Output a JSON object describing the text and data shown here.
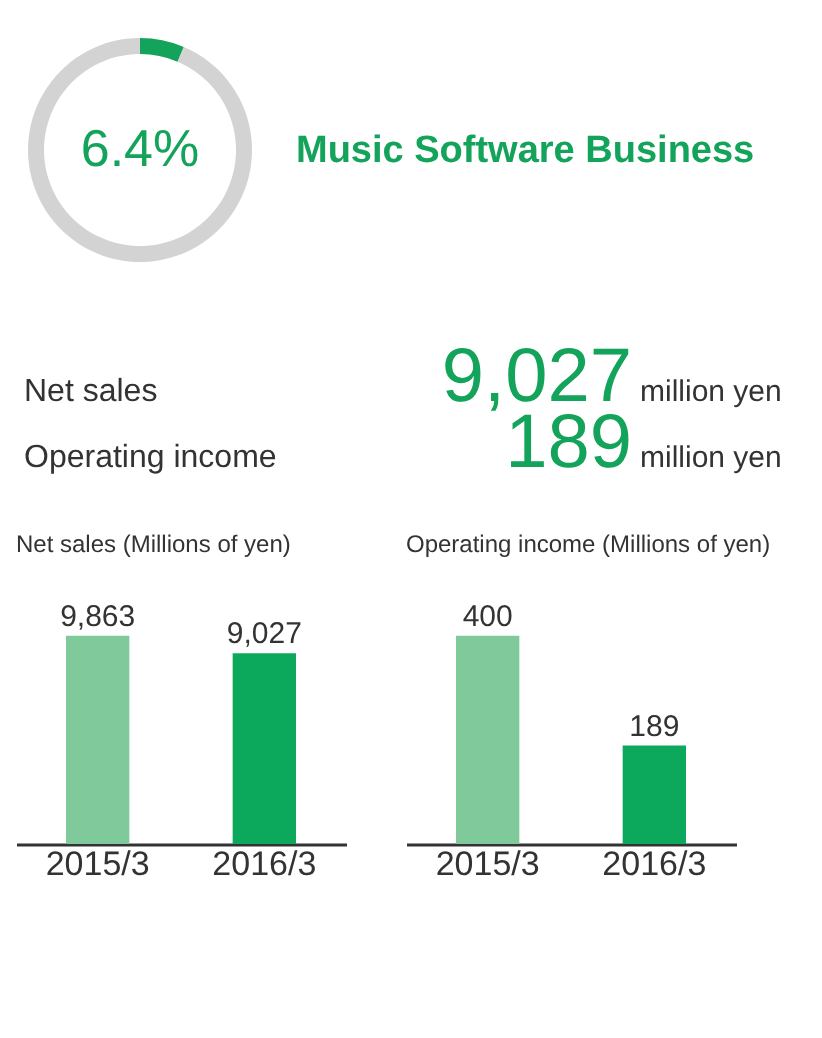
{
  "chart_data": [
    {
      "type": "donut",
      "title": "Music Software Business",
      "categories": [
        null,
        null
      ],
      "values": [
        6.4,
        93.6
      ],
      "colors": [
        "#13a35a",
        "#d3d3d3"
      ],
      "value_labels": [
        "6.4%",
        null
      ]
    },
    {
      "type": "other",
      "annotations": [
        "Net sales",
        "9,027",
        "million yen",
        "Operating income",
        "189",
        "million yen"
      ]
    },
    {
      "type": "bar",
      "title": "Net sales (Millions of yen)",
      "categories": [
        "2015/3",
        "2016/3"
      ],
      "values": [
        9863,
        9027
      ],
      "colors": [
        "#7fc99b",
        "#0ca85c"
      ],
      "value_labels": [
        "9,863",
        "9,027"
      ],
      "tick_labels": "x"
    },
    {
      "type": "bar",
      "title": "Operating income (Millions of yen)",
      "categories": [
        "2015/3",
        "2016/3"
      ],
      "values": [
        400,
        189
      ],
      "colors": [
        "#7fc99b",
        "#0ca85c"
      ],
      "value_labels": [
        "400",
        "189"
      ],
      "tick_labels": "x"
    }
  ]
}
